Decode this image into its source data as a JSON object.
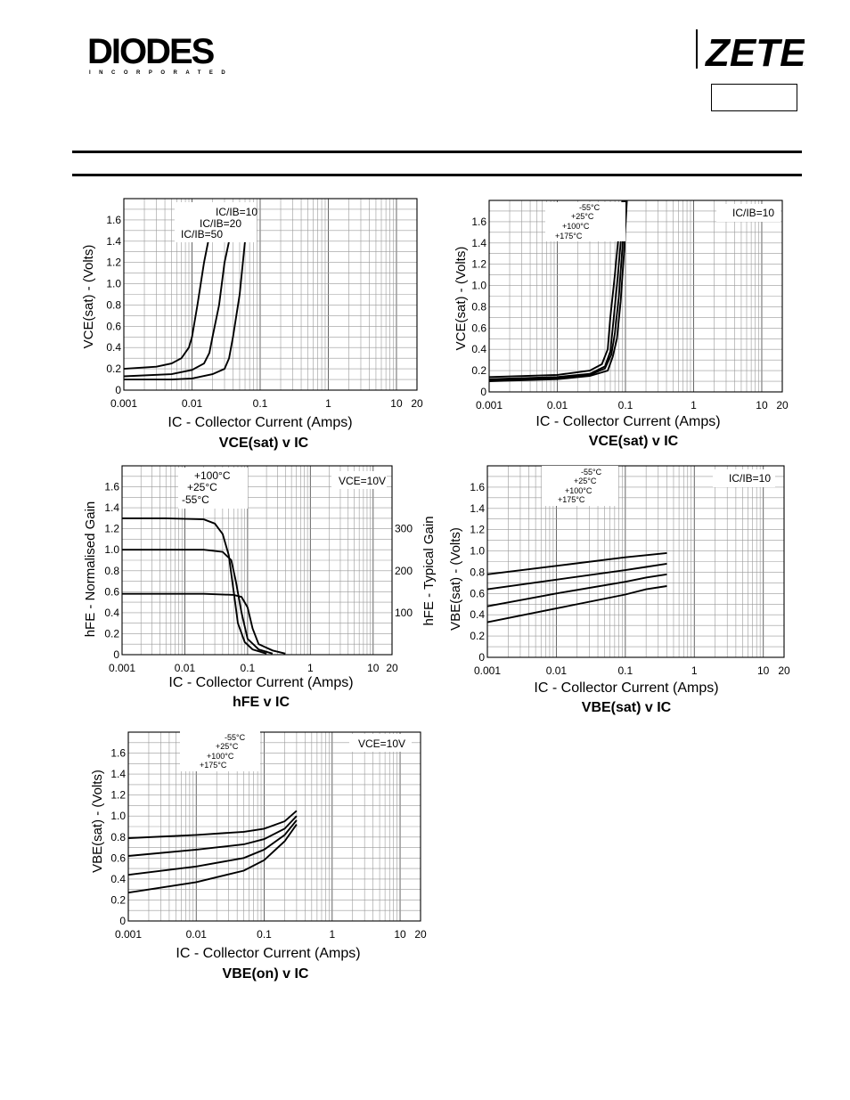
{
  "header": {
    "left_logo_text": "DIODES",
    "left_logo_subtext": "INCORPORATED",
    "right_logo_text": "ZETEX"
  },
  "chart_data": [
    {
      "type": "line",
      "title": "VCE(sat) v IC",
      "xlabel": "IC - Collector Current (Amps)",
      "ylabel": "VCE(sat) - (Volts)",
      "xscale": "log",
      "xlim": [
        0.001,
        20
      ],
      "ylim": [
        0,
        1.8
      ],
      "x_ticks": [
        "0.001",
        "0.01",
        "0.1",
        "1",
        "10",
        "20"
      ],
      "y_ticks": [
        "0",
        "0.2",
        "0.4",
        "0.6",
        "0.8",
        "1.0",
        "1.2",
        "1.4",
        "1.6"
      ],
      "annotations": [
        "IC/IB=10",
        "IC/IB=20",
        "IC/IB=50"
      ],
      "series": [
        {
          "name": "IC/IB=10",
          "x": [
            0.001,
            0.005,
            0.01,
            0.02,
            0.03,
            0.035,
            0.04,
            0.05,
            0.06
          ],
          "y": [
            0.1,
            0.1,
            0.11,
            0.15,
            0.2,
            0.3,
            0.5,
            0.9,
            1.4
          ]
        },
        {
          "name": "IC/IB=20",
          "x": [
            0.001,
            0.005,
            0.01,
            0.015,
            0.018,
            0.02,
            0.025,
            0.03,
            0.035
          ],
          "y": [
            0.13,
            0.15,
            0.19,
            0.25,
            0.35,
            0.5,
            0.8,
            1.2,
            1.4
          ]
        },
        {
          "name": "IC/IB=50",
          "x": [
            0.001,
            0.003,
            0.005,
            0.007,
            0.009,
            0.01,
            0.012,
            0.015,
            0.02
          ],
          "y": [
            0.2,
            0.22,
            0.25,
            0.3,
            0.4,
            0.5,
            0.8,
            1.2,
            1.6
          ]
        }
      ]
    },
    {
      "type": "line",
      "title": "VCE(sat) v IC",
      "xlabel": "IC - Collector Current (Amps)",
      "ylabel": "VCE(sat) - (Volts)",
      "xscale": "log",
      "xlim": [
        0.001,
        20
      ],
      "ylim": [
        0,
        1.8
      ],
      "x_ticks": [
        "0.001",
        "0.01",
        "0.1",
        "1",
        "10",
        "20"
      ],
      "y_ticks": [
        "0",
        "0.2",
        "0.4",
        "0.6",
        "0.8",
        "1.0",
        "1.2",
        "1.4",
        "1.6"
      ],
      "annotations": [
        "IC/IB=10",
        "-55°C",
        "+25°C",
        "+100°C",
        "+175°C"
      ],
      "series": [
        {
          "name": "-55°C",
          "x": [
            0.001,
            0.01,
            0.03,
            0.045,
            0.055,
            0.06,
            0.07,
            0.08,
            0.09
          ],
          "y": [
            0.14,
            0.16,
            0.2,
            0.26,
            0.4,
            0.7,
            1.1,
            1.5,
            1.8
          ]
        },
        {
          "name": "+25°C",
          "x": [
            0.001,
            0.01,
            0.03,
            0.05,
            0.06,
            0.065,
            0.075,
            0.085,
            0.095
          ],
          "y": [
            0.12,
            0.14,
            0.17,
            0.24,
            0.38,
            0.6,
            1.0,
            1.4,
            1.8
          ]
        },
        {
          "name": "+100°C",
          "x": [
            0.001,
            0.01,
            0.03,
            0.05,
            0.062,
            0.07,
            0.08,
            0.09,
            0.1
          ],
          "y": [
            0.11,
            0.13,
            0.16,
            0.22,
            0.35,
            0.55,
            0.9,
            1.35,
            1.8
          ]
        },
        {
          "name": "+175°C",
          "x": [
            0.001,
            0.01,
            0.03,
            0.055,
            0.065,
            0.075,
            0.085,
            0.095,
            0.105
          ],
          "y": [
            0.1,
            0.12,
            0.15,
            0.2,
            0.33,
            0.5,
            0.85,
            1.3,
            1.8
          ]
        }
      ]
    },
    {
      "type": "line",
      "title": "hFE v IC",
      "xlabel": "IC - Collector Current (Amps)",
      "ylabel": "hFE - Normalised Gain",
      "y2label": "hFE - Typical Gain",
      "xscale": "log",
      "xlim": [
        0.001,
        20
      ],
      "ylim": [
        0,
        1.8
      ],
      "y2_ticks": [
        "100",
        "200",
        "300"
      ],
      "x_ticks": [
        "0.001",
        "0.01",
        "0.1",
        "1",
        "10",
        "20"
      ],
      "y_ticks": [
        "0",
        "0.2",
        "0.4",
        "0.6",
        "0.8",
        "1.0",
        "1.2",
        "1.4",
        "1.6"
      ],
      "annotations": [
        "VCE=10V",
        "+100°C",
        "+25°C",
        "-55°C"
      ],
      "series": [
        {
          "name": "+100°C",
          "x": [
            0.001,
            0.005,
            0.02,
            0.03,
            0.04,
            0.05,
            0.06,
            0.07,
            0.09,
            0.12,
            0.2
          ],
          "y": [
            1.3,
            1.3,
            1.29,
            1.25,
            1.15,
            0.95,
            0.6,
            0.3,
            0.12,
            0.05,
            0.01
          ]
        },
        {
          "name": "+25°C",
          "x": [
            0.001,
            0.005,
            0.02,
            0.04,
            0.055,
            0.065,
            0.08,
            0.1,
            0.15,
            0.25
          ],
          "y": [
            1.0,
            1.0,
            1.0,
            0.98,
            0.9,
            0.7,
            0.4,
            0.15,
            0.05,
            0.01
          ]
        },
        {
          "name": "-55°C",
          "x": [
            0.001,
            0.005,
            0.02,
            0.06,
            0.08,
            0.1,
            0.12,
            0.15,
            0.25,
            0.4
          ],
          "y": [
            0.58,
            0.58,
            0.58,
            0.57,
            0.55,
            0.45,
            0.25,
            0.1,
            0.04,
            0.01
          ]
        }
      ]
    },
    {
      "type": "line",
      "title": "VBE(sat) v IC",
      "xlabel": "IC - Collector Current (Amps)",
      "ylabel": "VBE(sat) - (Volts)",
      "xscale": "log",
      "xlim": [
        0.001,
        20
      ],
      "ylim": [
        0,
        1.8
      ],
      "x_ticks": [
        "0.001",
        "0.01",
        "0.1",
        "1",
        "10",
        "20"
      ],
      "y_ticks": [
        "0",
        "0.2",
        "0.4",
        "0.6",
        "0.8",
        "1.0",
        "1.2",
        "1.4",
        "1.6"
      ],
      "annotations": [
        "IC/IB=10",
        "-55°C",
        "+25°C",
        "+100°C",
        "+175°C"
      ],
      "series": [
        {
          "name": "-55°C",
          "x": [
            0.001,
            0.01,
            0.1,
            0.2,
            0.4
          ],
          "y": [
            0.78,
            0.86,
            0.94,
            0.96,
            0.98
          ]
        },
        {
          "name": "+25°C",
          "x": [
            0.001,
            0.01,
            0.1,
            0.2,
            0.4
          ],
          "y": [
            0.64,
            0.73,
            0.82,
            0.85,
            0.88
          ]
        },
        {
          "name": "+100°C",
          "x": [
            0.001,
            0.01,
            0.1,
            0.2,
            0.4
          ],
          "y": [
            0.48,
            0.6,
            0.71,
            0.75,
            0.78
          ]
        },
        {
          "name": "+175°C",
          "x": [
            0.001,
            0.01,
            0.1,
            0.2,
            0.4
          ],
          "y": [
            0.33,
            0.46,
            0.59,
            0.64,
            0.67
          ]
        }
      ]
    },
    {
      "type": "line",
      "title": "VBE(on) v IC",
      "xlabel": "IC - Collector Current (Amps)",
      "ylabel": "VBE(sat) - (Volts)",
      "xscale": "log",
      "xlim": [
        0.001,
        20
      ],
      "ylim": [
        0,
        1.8
      ],
      "x_ticks": [
        "0.001",
        "0.01",
        "0.1",
        "1",
        "10",
        "20"
      ],
      "y_ticks": [
        "0",
        "0.2",
        "0.4",
        "0.6",
        "0.8",
        "1.0",
        "1.2",
        "1.4",
        "1.6"
      ],
      "annotations": [
        "VCE=10V",
        "-55°C",
        "+25°C",
        "+100°C",
        "+175°C"
      ],
      "series": [
        {
          "name": "-55°C",
          "x": [
            0.001,
            0.01,
            0.05,
            0.1,
            0.2,
            0.3
          ],
          "y": [
            0.79,
            0.82,
            0.85,
            0.88,
            0.95,
            1.05
          ]
        },
        {
          "name": "+25°C",
          "x": [
            0.001,
            0.01,
            0.05,
            0.1,
            0.2,
            0.3
          ],
          "y": [
            0.62,
            0.68,
            0.73,
            0.78,
            0.88,
            1.0
          ]
        },
        {
          "name": "+100°C",
          "x": [
            0.001,
            0.01,
            0.05,
            0.1,
            0.2,
            0.3
          ],
          "y": [
            0.44,
            0.52,
            0.6,
            0.68,
            0.82,
            0.96
          ]
        },
        {
          "name": "+175°C",
          "x": [
            0.001,
            0.01,
            0.05,
            0.1,
            0.2,
            0.3
          ],
          "y": [
            0.27,
            0.37,
            0.48,
            0.58,
            0.76,
            0.92
          ]
        }
      ]
    }
  ]
}
